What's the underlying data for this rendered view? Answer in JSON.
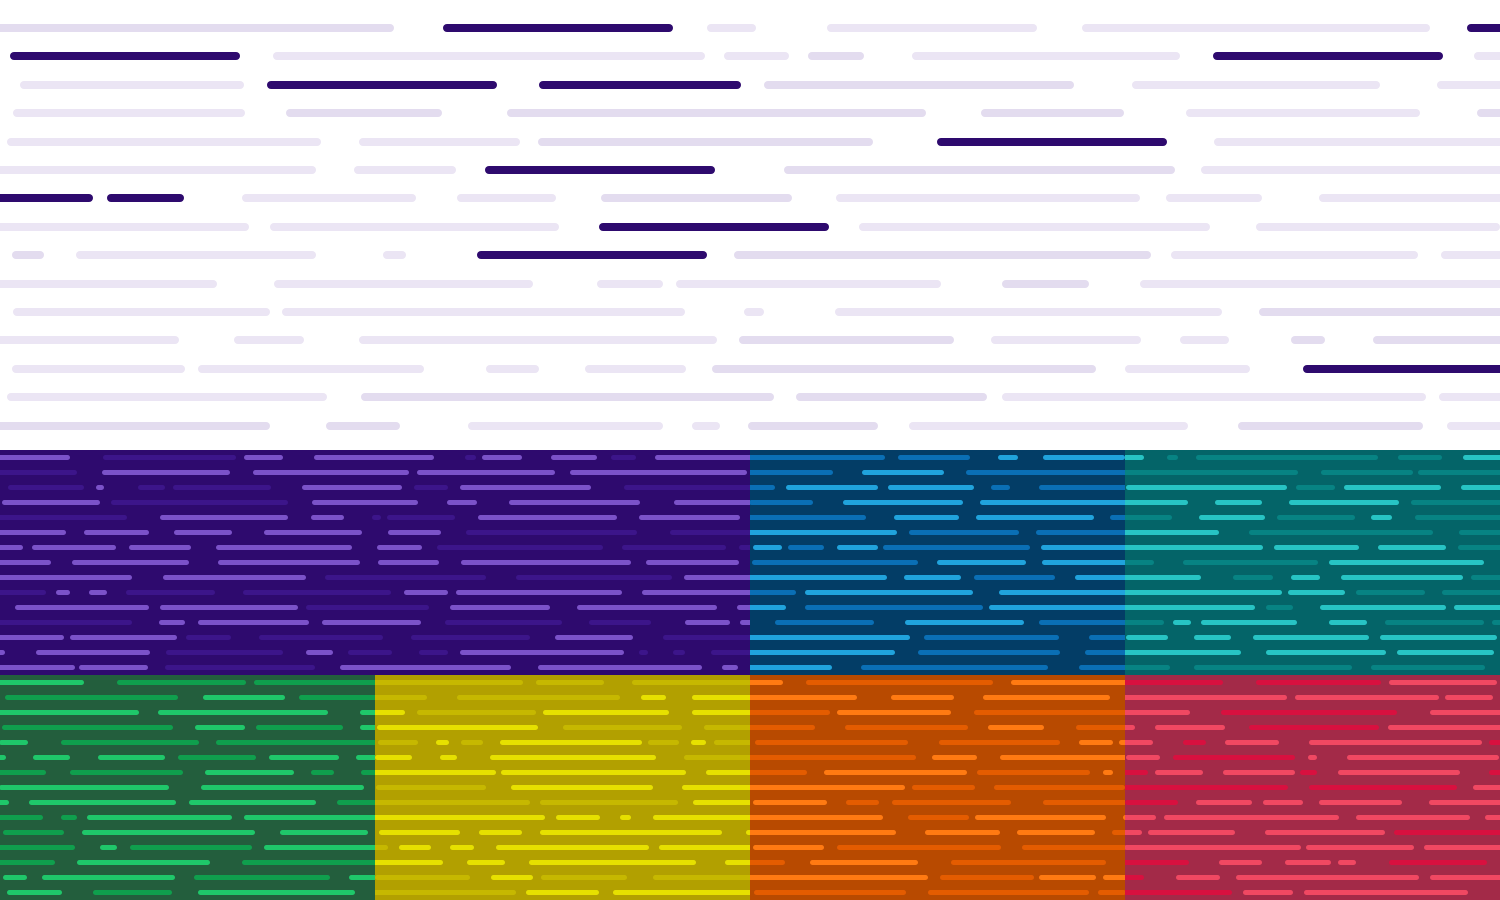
{
  "palette": {
    "background": "#ffffff",
    "top_dim": "#ebe5f4",
    "top_dim_alt": "#e3dcef",
    "top_accent": "#2e0a6e",
    "panels": [
      {
        "name": "purple-panel",
        "bg": "#2e0a6e",
        "light": "#7b52c9",
        "dark": "#3c158a"
      },
      {
        "name": "blue-panel",
        "bg": "#033d66",
        "light": "#20a3dc",
        "dark": "#0a6fb5"
      },
      {
        "name": "teal-panel",
        "bg": "#046468",
        "light": "#27c4c4",
        "dark": "#078383"
      },
      {
        "name": "green-panel",
        "bg": "#235e3d",
        "light": "#1fc76a",
        "dark": "#0f9f4d"
      },
      {
        "name": "yellow-panel",
        "bg": "#b2a000",
        "light": "#e6e000",
        "dark": "#c6b800"
      },
      {
        "name": "orange-panel",
        "bg": "#b84a00",
        "light": "#ff7a12",
        "dark": "#e45c00"
      },
      {
        "name": "red-panel",
        "bg": "#a32a48",
        "light": "#f04862",
        "dark": "#d8103f"
      }
    ]
  }
}
